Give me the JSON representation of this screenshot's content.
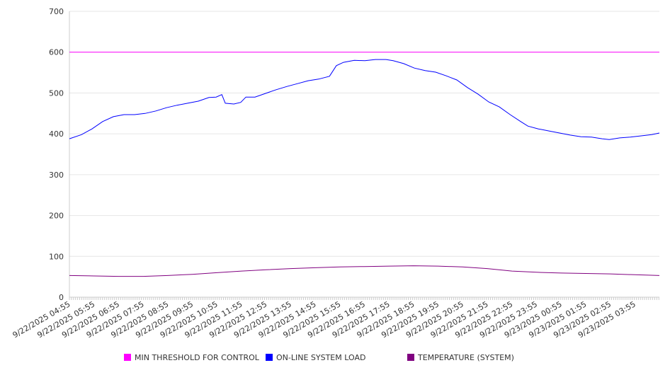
{
  "chart_data": {
    "type": "line",
    "title": "",
    "xlabel": "",
    "ylabel": "",
    "ylim": [
      0,
      700
    ],
    "yticks": [
      0,
      100,
      200,
      300,
      400,
      500,
      600,
      700
    ],
    "xlim_hours": [
      0,
      24
    ],
    "x_tick_labels": [
      "9/22/2025 04:55",
      "9/22/2025 05:55",
      "9/22/2025 06:55",
      "9/22/2025 07:55",
      "9/22/2025 08:55",
      "9/22/2025 09:55",
      "9/22/2025 10:55",
      "9/22/2025 11:55",
      "9/22/2025 12:55",
      "9/22/2025 13:55",
      "9/22/2025 14:55",
      "9/22/2025 15:55",
      "9/22/2025 16:55",
      "9/22/2025 17:55",
      "9/22/2025 18:55",
      "9/22/2025 19:55",
      "9/22/2025 20:55",
      "9/22/2025 21:55",
      "9/22/2025 22:55",
      "9/22/2025 23:55",
      "9/23/2025 00:55",
      "9/23/2025 01:55",
      "9/23/2025 02:55",
      "9/23/2025 03:55"
    ],
    "grid": true,
    "legend_position": "bottom",
    "series": [
      {
        "name": "MIN THRESHOLD FOR CONTROL",
        "color": "#ff00ff",
        "x": [
          0,
          24
        ],
        "y": [
          600,
          600
        ]
      },
      {
        "name": "ON-LINE SYSTEM LOAD",
        "color": "#0000ff",
        "x": [
          0,
          0.49,
          0.92,
          1.35,
          1.79,
          2.22,
          2.65,
          3.08,
          3.52,
          3.95,
          4.38,
          4.81,
          5.24,
          5.68,
          5.97,
          6.2,
          6.34,
          6.69,
          6.97,
          7.18,
          7.55,
          7.98,
          8.41,
          8.85,
          9.28,
          9.71,
          10.14,
          10.58,
          10.86,
          11.15,
          11.59,
          12.02,
          12.45,
          12.88,
          13.17,
          13.6,
          14.03,
          14.47,
          14.9,
          15.33,
          15.76,
          16.2,
          16.63,
          17.06,
          17.49,
          17.93,
          18.36,
          18.65,
          19.08,
          19.51,
          19.94,
          20.37,
          20.81,
          21.24,
          21.67,
          21.96,
          22.39,
          22.82,
          23.26,
          23.69,
          24
        ],
        "y": [
          388,
          398,
          412,
          430,
          442,
          447,
          447,
          450,
          456,
          464,
          470,
          475,
          480,
          489,
          490,
          496,
          475,
          473,
          477,
          490,
          490,
          499,
          508,
          516,
          523,
          530,
          534,
          541,
          567,
          575,
          580,
          579,
          582,
          582,
          579,
          572,
          561,
          555,
          551,
          542,
          532,
          513,
          497,
          478,
          466,
          447,
          430,
          419,
          412,
          407,
          402,
          397,
          393,
          392,
          388,
          386,
          390,
          392,
          395,
          398,
          402
        ]
      },
      {
        "name": "TEMPERATURE (SYSTEM)",
        "color": "#800080",
        "x": [
          0,
          1,
          2,
          3,
          4,
          5,
          6,
          7,
          8,
          9,
          10,
          11,
          12,
          13,
          14,
          15,
          16,
          17,
          18,
          19,
          20,
          21,
          22,
          23,
          24
        ],
        "y": [
          53,
          52,
          51,
          51,
          53,
          56,
          60,
          64,
          67,
          70,
          72,
          74,
          75,
          76,
          77,
          76,
          74,
          70,
          64,
          61,
          59,
          58,
          57,
          55,
          53
        ]
      }
    ]
  }
}
